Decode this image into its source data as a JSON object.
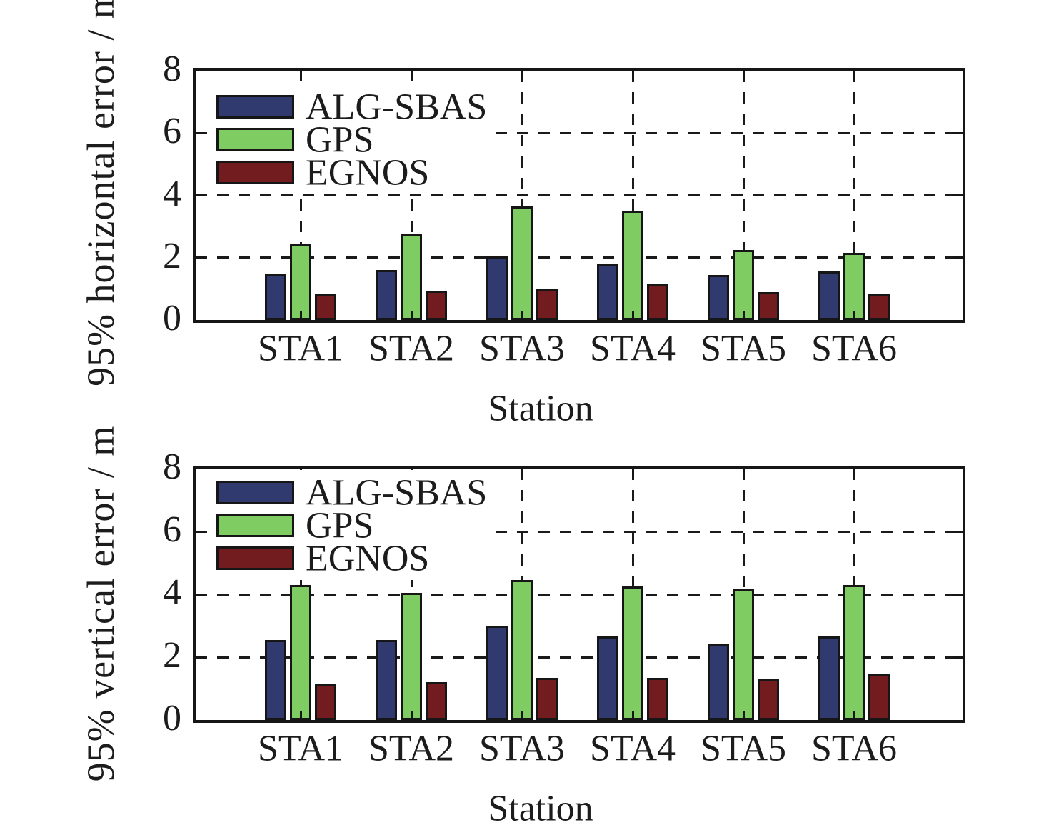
{
  "figure": {
    "background": "#ffffff",
    "text_color": "#1c1c1c",
    "axis_color": "#161616",
    "grid_style": "dashed"
  },
  "chart_data": [
    {
      "type": "bar",
      "title": "",
      "xlabel": "Station",
      "ylabel": "95% horizontal error / m",
      "categories": [
        "STA1",
        "STA2",
        "STA3",
        "STA4",
        "STA5",
        "STA6"
      ],
      "series": [
        {
          "name": "ALG-SBAS",
          "color": "#313A6E",
          "values": [
            1.5,
            1.6,
            2.05,
            1.8,
            1.45,
            1.55
          ]
        },
        {
          "name": "GPS",
          "color": "#7ECC62",
          "values": [
            2.45,
            2.75,
            3.65,
            3.5,
            2.25,
            2.15
          ]
        },
        {
          "name": "EGNOS",
          "color": "#731C20",
          "values": [
            0.85,
            0.95,
            1.0,
            1.15,
            0.9,
            0.85
          ]
        }
      ],
      "ylim": [
        0,
        8
      ],
      "yticks": [
        0,
        2,
        4,
        6,
        8
      ],
      "grid": "on",
      "legend_position": "top-left"
    },
    {
      "type": "bar",
      "title": "",
      "xlabel": "Station",
      "ylabel": "95% vertical error / m",
      "categories": [
        "STA1",
        "STA2",
        "STA3",
        "STA4",
        "STA5",
        "STA6"
      ],
      "series": [
        {
          "name": "ALG-SBAS",
          "color": "#313A6E",
          "values": [
            2.55,
            2.55,
            3.0,
            2.65,
            2.4,
            2.65
          ]
        },
        {
          "name": "GPS",
          "color": "#7ECC62",
          "values": [
            4.3,
            4.05,
            4.45,
            4.25,
            4.15,
            4.3
          ]
        },
        {
          "name": "EGNOS",
          "color": "#731C20",
          "values": [
            1.15,
            1.2,
            1.35,
            1.35,
            1.3,
            1.45
          ]
        }
      ],
      "ylim": [
        0,
        8
      ],
      "yticks": [
        0,
        2,
        4,
        6,
        8
      ],
      "grid": "on",
      "legend_position": "top-left"
    }
  ]
}
